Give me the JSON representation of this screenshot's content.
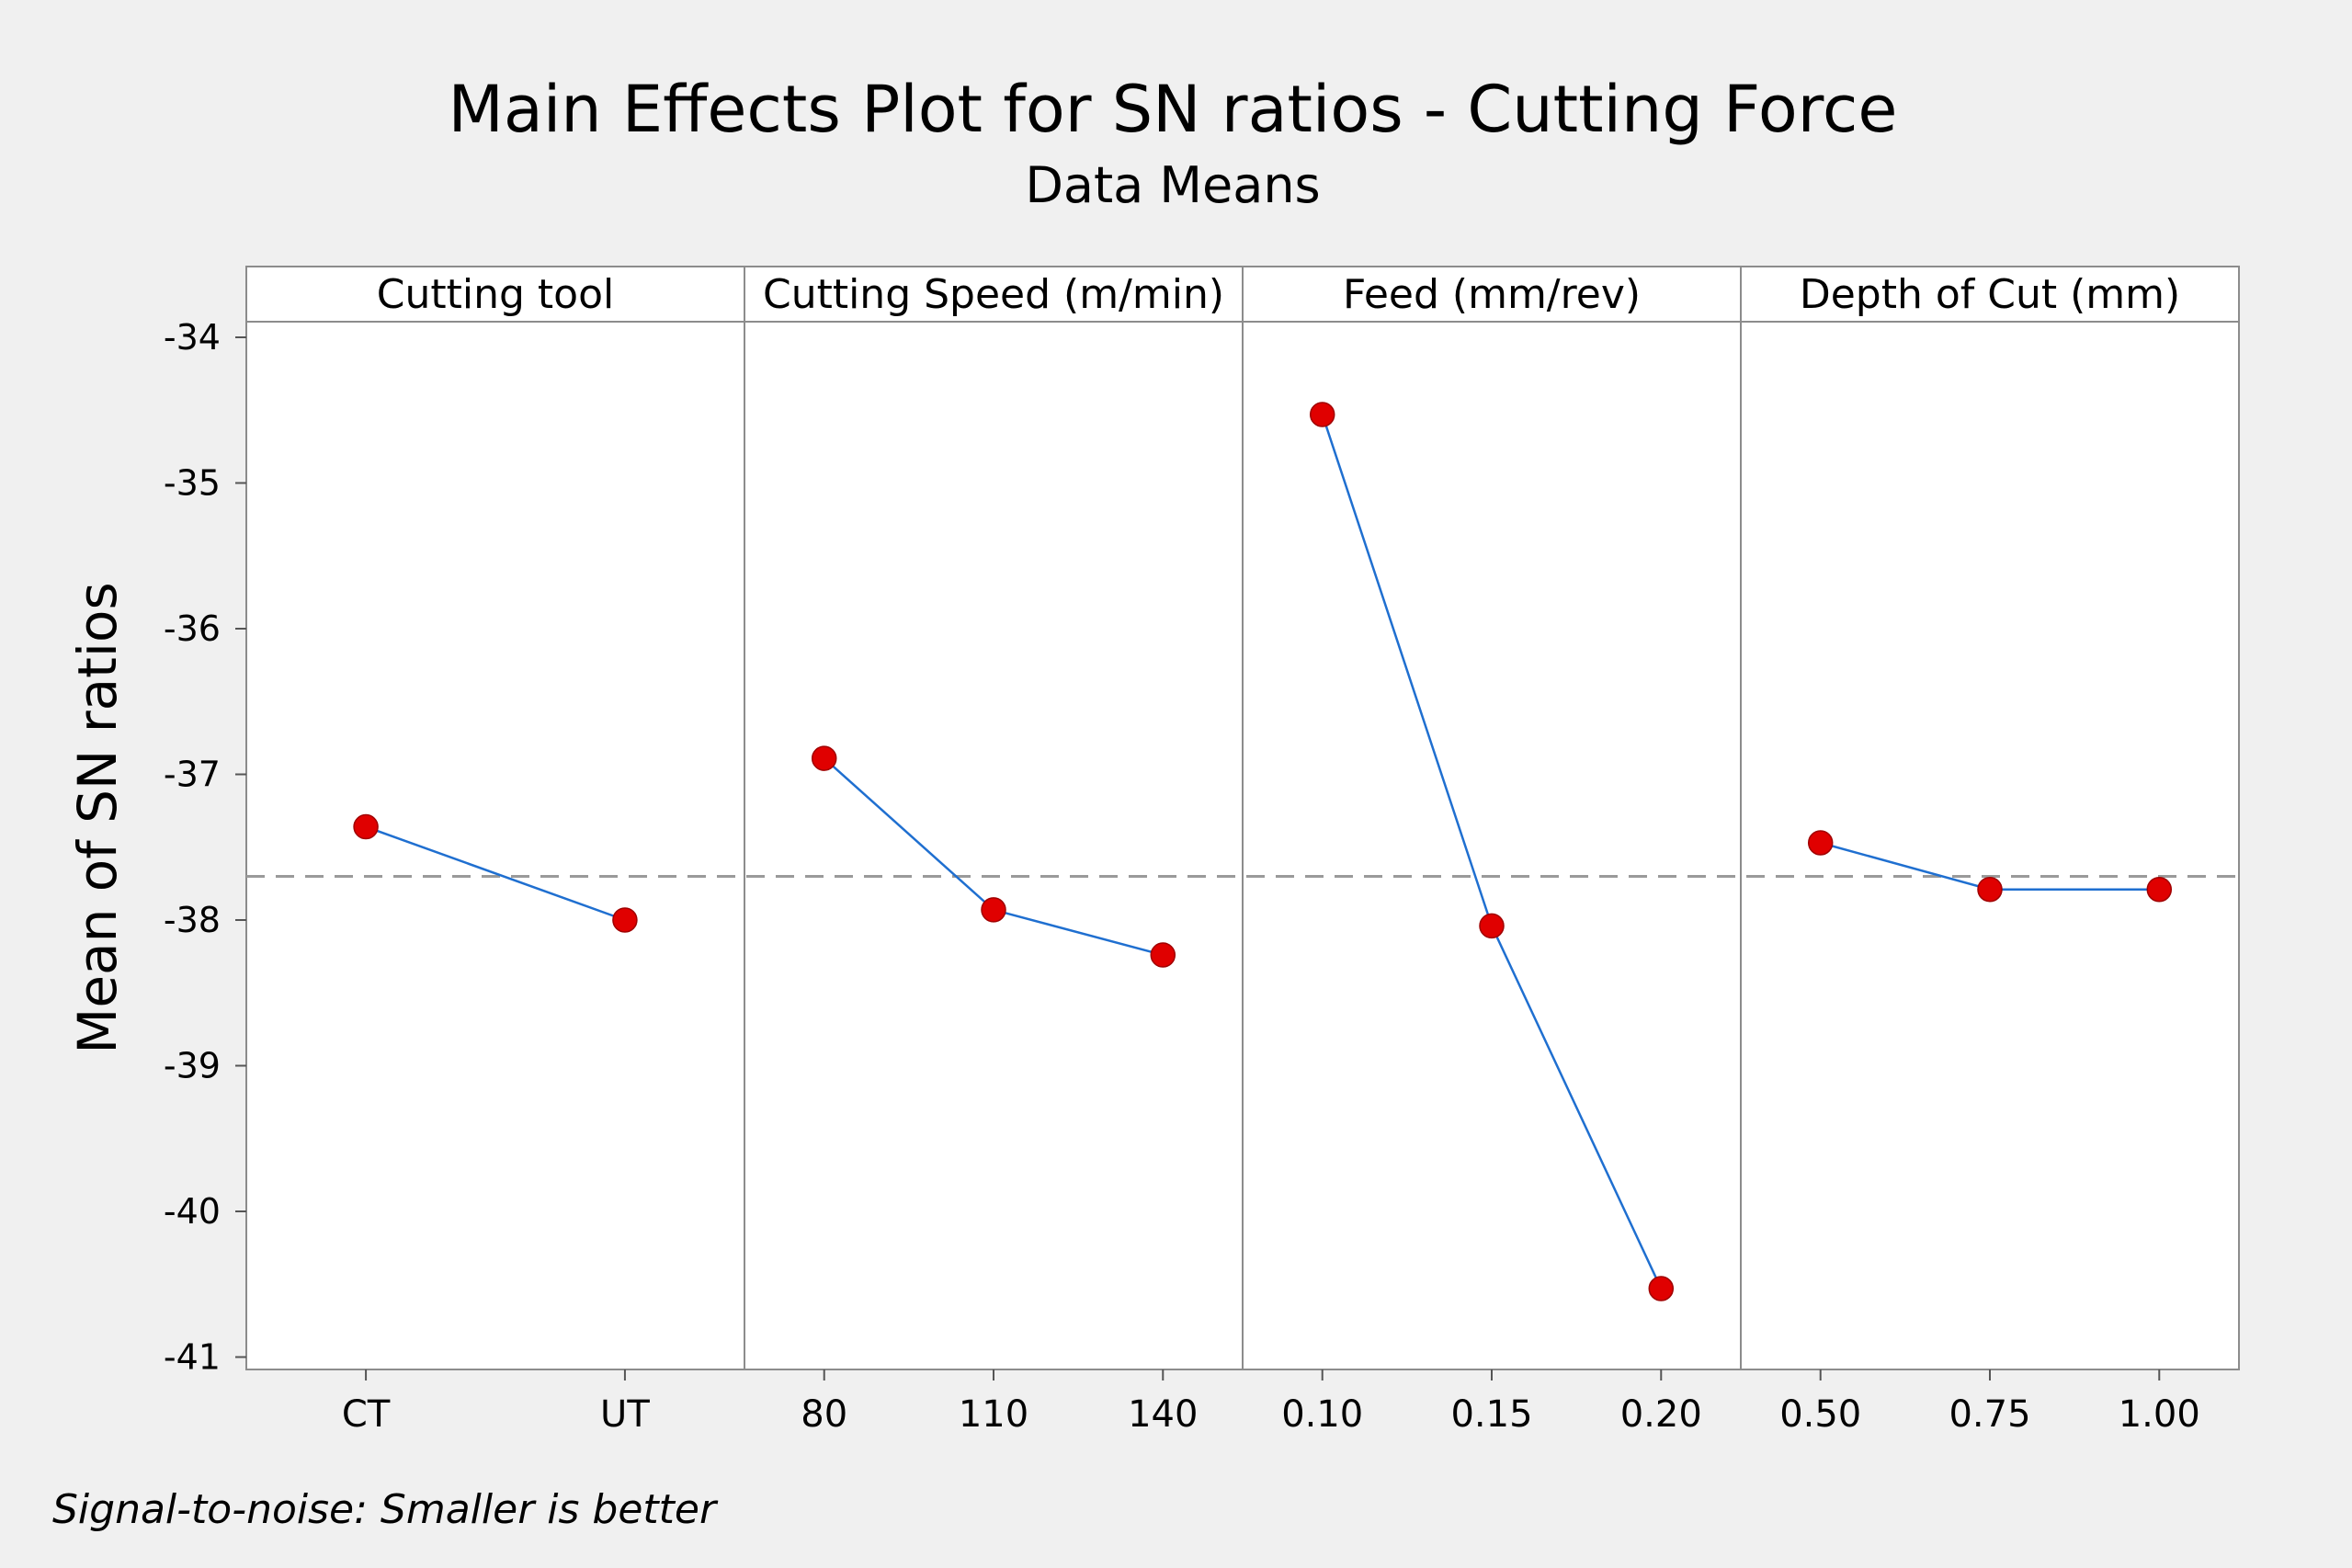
{
  "chart_data": {
    "type": "line",
    "title": "Main Effects Plot for SN ratios - Cutting Force",
    "subtitle": "Data Means",
    "ylabel": "Mean of SN ratios",
    "ylim": [
      -41,
      -34
    ],
    "yticks": [
      -34,
      -35,
      -36,
      -37,
      -38,
      -39,
      -40,
      -41
    ],
    "reference_line": -37.7,
    "footnote": "Signal-to-noise: Smaller is better",
    "grid": false,
    "legend": "none",
    "line_color": "#1f6fd0",
    "marker_color": "#e00000",
    "reference_color": "#9a9a9a",
    "panels": [
      {
        "name": "Cutting tool",
        "categories": [
          "CT",
          "UT"
        ],
        "values": [
          -37.36,
          -38.0
        ]
      },
      {
        "name": "Cutting Speed (m/min)",
        "categories": [
          "80",
          "110",
          "140"
        ],
        "values": [
          -36.89,
          -37.93,
          -38.24
        ]
      },
      {
        "name": "Feed (mm/rev)",
        "categories": [
          "0.10",
          "0.15",
          "0.20"
        ],
        "values": [
          -34.53,
          -38.04,
          -40.53
        ]
      },
      {
        "name": "Depth of Cut (mm)",
        "categories": [
          "0.50",
          "0.75",
          "1.00"
        ],
        "values": [
          -37.47,
          -37.79,
          -37.79
        ]
      }
    ]
  }
}
